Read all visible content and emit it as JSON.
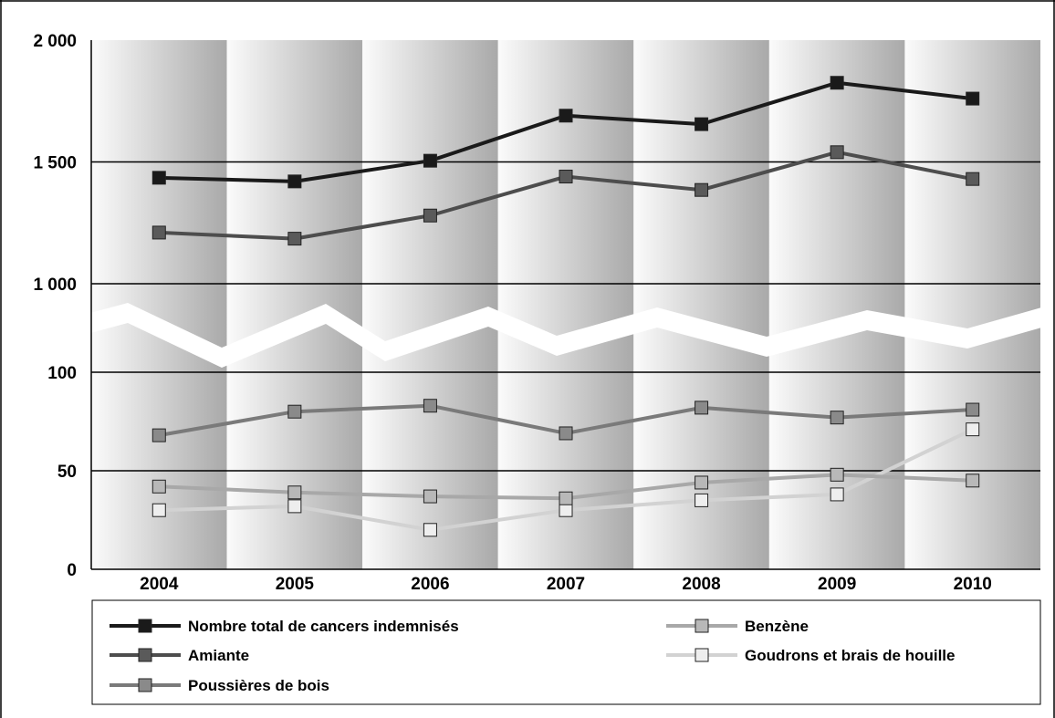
{
  "chart_data": {
    "type": "line",
    "title": "",
    "xlabel": "",
    "ylabel": "",
    "axis_break": "between 100 and 1 000",
    "y_ticks": [
      "2 000",
      "1 500",
      "1 000",
      "100",
      "50",
      "0"
    ],
    "ylim_upper": [
      1000,
      2000
    ],
    "ylim_lower": [
      0,
      100
    ],
    "grid": true,
    "legend_position": "bottom",
    "categories": [
      "2004",
      "2005",
      "2006",
      "2007",
      "2008",
      "2009",
      "2010"
    ],
    "series": [
      {
        "name": "Nombre total de cancers indemnisés",
        "color": "#1a1a1a",
        "marker_fill": "#1a1a1a",
        "values": [
          1435,
          1420,
          1505,
          1690,
          1655,
          1825,
          1760
        ]
      },
      {
        "name": "Amiante",
        "color": "#4d4d4d",
        "marker_fill": "#5a5a5a",
        "values": [
          1210,
          1185,
          1280,
          1440,
          1385,
          1540,
          1430
        ]
      },
      {
        "name": "Poussières de bois",
        "color": "#7a7a7a",
        "marker_fill": "#8a8a8a",
        "values": [
          68,
          80,
          83,
          69,
          82,
          77,
          81
        ]
      },
      {
        "name": "Benzène",
        "color": "#a8a8a8",
        "marker_fill": "#b8b8b8",
        "values": [
          42,
          39,
          37,
          36,
          44,
          48,
          45
        ]
      },
      {
        "name": "Goudrons et brais de houille",
        "color": "#d2d2d2",
        "marker_fill": "#eeeeee",
        "values": [
          30,
          32,
          20,
          30,
          35,
          38,
          71
        ]
      }
    ]
  }
}
